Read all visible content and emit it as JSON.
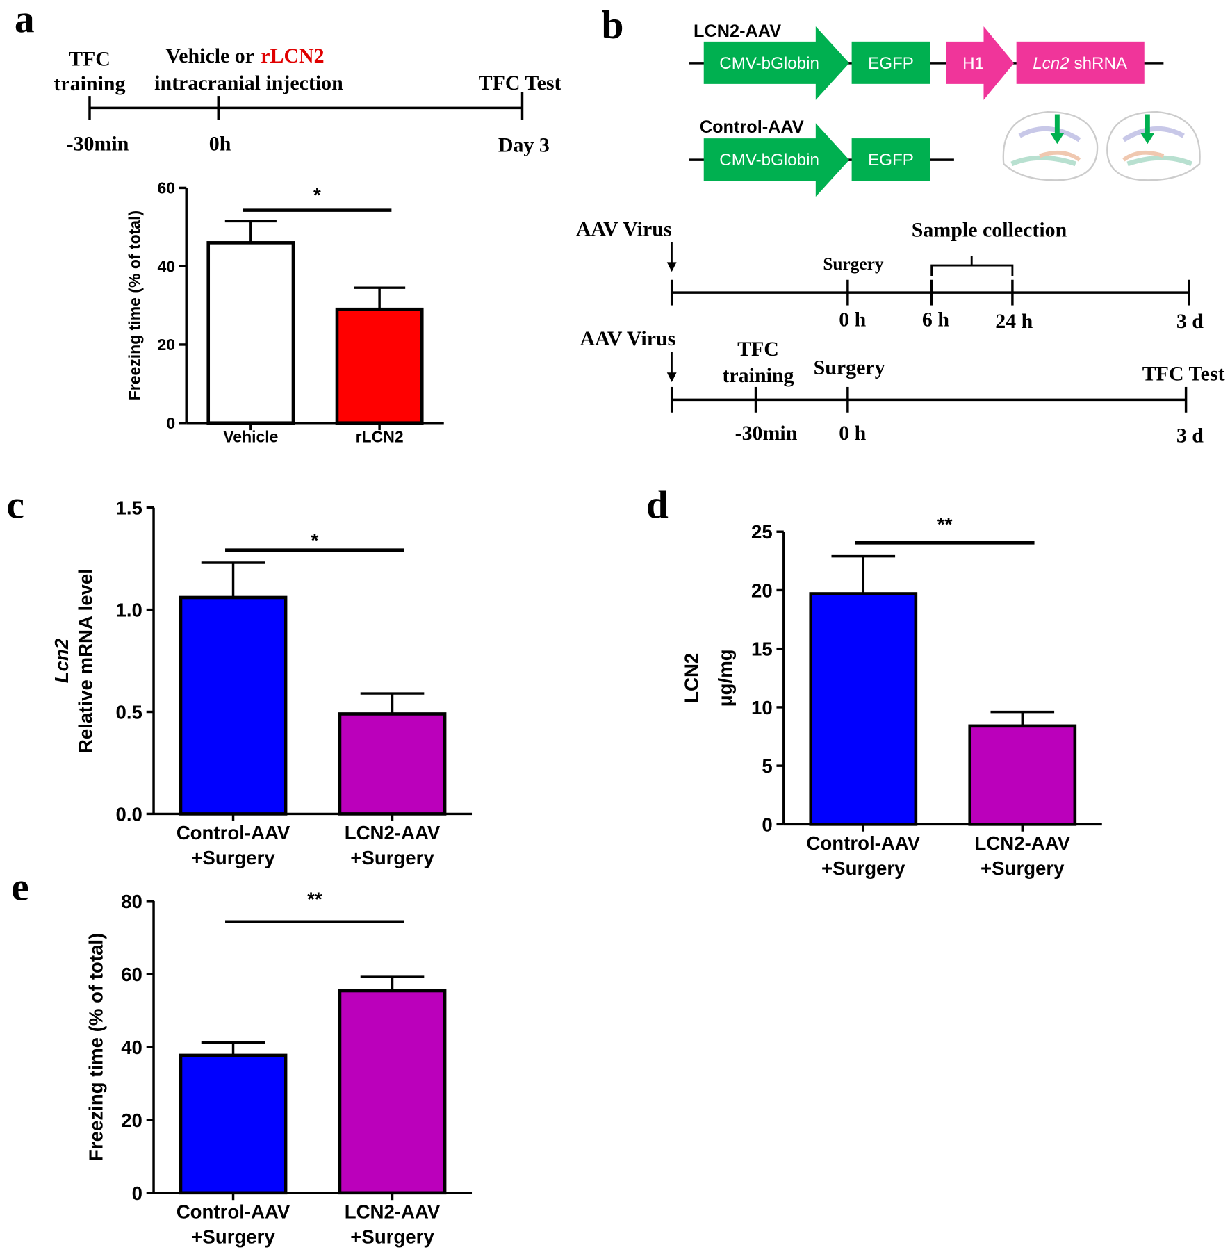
{
  "panel_labels": [
    "a",
    "b",
    "c",
    "d",
    "e"
  ],
  "timeline_a": {
    "start_event": [
      "TFC",
      "training"
    ],
    "injection": {
      "prefix": "Vehicle or",
      "agent": "rLCN2",
      "line2": "intracranial injection"
    },
    "end_event": "TFC Test",
    "times": [
      "-30min",
      "0h",
      "Day 3"
    ]
  },
  "constructs": [
    {
      "name": "LCN2-AAV",
      "elements": [
        "CMV-bGlobin",
        "EGFP",
        "H1",
        {
          "gene": "Lcn2",
          "suffix": "shRNA"
        }
      ]
    },
    {
      "name": "Control-AAV",
      "elements": [
        "CMV-bGlobin",
        "EGFP"
      ]
    }
  ],
  "timelines_b": [
    {
      "start": "AAV Virus",
      "events": [
        "Surgery",
        "Sample collection"
      ],
      "times": [
        "0 h",
        "6 h",
        "24 h",
        "3 d"
      ]
    },
    {
      "start": "AAV Virus",
      "events": [
        [
          "TFC",
          "training"
        ],
        "Surgery",
        "TFC Test"
      ],
      "times": [
        "-30min",
        "0 h",
        "3 d"
      ]
    }
  ],
  "chart_data": [
    {
      "type": "bar",
      "ylabel": [
        "Freezing time (% of total)"
      ],
      "categories": [
        [
          "Vehicle"
        ],
        [
          "rLCN2"
        ]
      ],
      "values": [
        46,
        29
      ],
      "errors": [
        5.5,
        5.5
      ],
      "colors": [
        "#ffffff",
        "#ff0000"
      ],
      "ylim": [
        0,
        60
      ],
      "yticks": [
        0,
        20,
        40,
        60
      ],
      "significance": "*"
    },
    {
      "type": "bar",
      "ylabel": [
        "Lcn2",
        "Relative mRNA level"
      ],
      "categories": [
        [
          "Control-AAV",
          "+Surgery"
        ],
        [
          "LCN2-AAV",
          "+Surgery"
        ]
      ],
      "values": [
        1.06,
        0.49
      ],
      "errors": [
        0.17,
        0.1
      ],
      "colors": [
        "#0000ff",
        "#bb00bb"
      ],
      "ylim": [
        0,
        1.5
      ],
      "yticks": [
        {
          "value": 0,
          "label": "0.0"
        },
        0.5,
        {
          "value": 1,
          "label": "1.0"
        },
        1.5
      ],
      "significance": "*"
    },
    {
      "type": "bar",
      "ylabel": [
        "LCN2",
        "μg/mg"
      ],
      "categories": [
        [
          "Control-AAV",
          "+Surgery"
        ],
        [
          "LCN2-AAV",
          "+Surgery"
        ]
      ],
      "values": [
        19.7,
        8.4
      ],
      "errors": [
        3.2,
        1.2
      ],
      "colors": [
        "#0000ff",
        "#bb00bb"
      ],
      "ylim": [
        0,
        25
      ],
      "yticks": [
        0,
        5,
        10,
        15,
        20,
        25
      ],
      "significance": "**"
    },
    {
      "type": "bar",
      "ylabel": [
        "Freezing time  (% of total)"
      ],
      "categories": [
        [
          "Control-AAV",
          "+Surgery"
        ],
        [
          "LCN2-AAV",
          "+Surgery"
        ]
      ],
      "values": [
        37.7,
        55.4
      ],
      "errors": [
        3.5,
        3.8
      ],
      "colors": [
        "#0000ff",
        "#bb00bb"
      ],
      "ylim": [
        0,
        80
      ],
      "yticks": [
        0,
        20,
        40,
        60,
        80
      ],
      "significance": "**"
    }
  ]
}
